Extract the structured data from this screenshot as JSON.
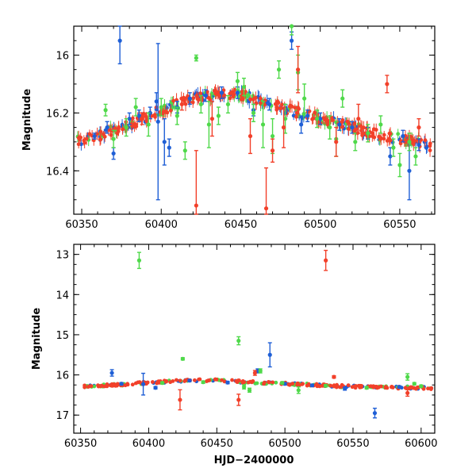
{
  "colors": {
    "blue": "#1f5fd6",
    "green": "#4fd94a",
    "red": "#f2402a"
  },
  "chart_data": [
    {
      "type": "scatter",
      "panel": "top",
      "title": "",
      "xlabel": "",
      "ylabel": "Magnitude",
      "xlim": [
        60345,
        60572
      ],
      "ylim": [
        16.55,
        15.9
      ],
      "y_inverted": true,
      "grid": false,
      "xticks": [
        60350,
        60400,
        60450,
        60500,
        60550
      ],
      "yticks": [
        16.0,
        16.2,
        16.4
      ],
      "ytick_labels": [
        "16",
        "16.2",
        "16.4"
      ],
      "trend": {
        "x": [
          60345,
          60360,
          60380,
          60400,
          60420,
          60440,
          60460,
          60480,
          60500,
          60520,
          60540,
          60560,
          60572
        ],
        "y": [
          16.3,
          16.28,
          16.24,
          16.19,
          16.15,
          16.13,
          16.15,
          16.19,
          16.22,
          16.25,
          16.28,
          16.3,
          16.32
        ]
      },
      "series": [
        {
          "color": "blue",
          "points": [
            {
              "x": 60358,
              "y": 16.28,
              "e": 0.01
            },
            {
              "x": 60366,
              "y": 16.25,
              "e": 0.02
            },
            {
              "x": 60370,
              "y": 16.34,
              "e": 0.02
            },
            {
              "x": 60374,
              "y": 15.95,
              "e": 0.08
            },
            {
              "x": 60380,
              "y": 16.22,
              "e": 0.02
            },
            {
              "x": 60386,
              "y": 16.21,
              "e": 0.02
            },
            {
              "x": 60393,
              "y": 16.2,
              "e": 0.02
            },
            {
              "x": 60397,
              "y": 16.16,
              "e": 0.03
            },
            {
              "x": 60398,
              "y": 16.23,
              "e": 0.27
            },
            {
              "x": 60402,
              "y": 16.3,
              "e": 0.08
            },
            {
              "x": 60405,
              "y": 16.32,
              "e": 0.03
            },
            {
              "x": 60410,
              "y": 16.18,
              "e": 0.02
            },
            {
              "x": 60418,
              "y": 16.15,
              "e": 0.02
            },
            {
              "x": 60428,
              "y": 16.14,
              "e": 0.02
            },
            {
              "x": 60438,
              "y": 16.13,
              "e": 0.02
            },
            {
              "x": 60448,
              "y": 16.13,
              "e": 0.02
            },
            {
              "x": 60458,
              "y": 16.19,
              "e": 0.02
            },
            {
              "x": 60468,
              "y": 16.17,
              "e": 0.02
            },
            {
              "x": 60478,
              "y": 16.2,
              "e": 0.02
            },
            {
              "x": 60482,
              "y": 15.95,
              "e": 0.03
            },
            {
              "x": 60488,
              "y": 16.24,
              "e": 0.03
            },
            {
              "x": 60492,
              "y": 16.21,
              "e": 0.02
            },
            {
              "x": 60500,
              "y": 16.22,
              "e": 0.02
            },
            {
              "x": 60512,
              "y": 16.24,
              "e": 0.02
            },
            {
              "x": 60520,
              "y": 16.25,
              "e": 0.02
            },
            {
              "x": 60530,
              "y": 16.27,
              "e": 0.02
            },
            {
              "x": 60544,
              "y": 16.35,
              "e": 0.03
            },
            {
              "x": 60552,
              "y": 16.28,
              "e": 0.02
            },
            {
              "x": 60556,
              "y": 16.4,
              "e": 0.1
            },
            {
              "x": 60562,
              "y": 16.31,
              "e": 0.02
            }
          ]
        },
        {
          "color": "green",
          "points": [
            {
              "x": 60365,
              "y": 16.19,
              "e": 0.02
            },
            {
              "x": 60370,
              "y": 16.29,
              "e": 0.03
            },
            {
              "x": 60378,
              "y": 16.25,
              "e": 0.03
            },
            {
              "x": 60384,
              "y": 16.18,
              "e": 0.03
            },
            {
              "x": 60392,
              "y": 16.24,
              "e": 0.04
            },
            {
              "x": 60400,
              "y": 16.18,
              "e": 0.03
            },
            {
              "x": 60410,
              "y": 16.21,
              "e": 0.03
            },
            {
              "x": 60415,
              "y": 16.33,
              "e": 0.03
            },
            {
              "x": 60422,
              "y": 16.01,
              "e": 0.01
            },
            {
              "x": 60425,
              "y": 16.17,
              "e": 0.03
            },
            {
              "x": 60430,
              "y": 16.24,
              "e": 0.08
            },
            {
              "x": 60436,
              "y": 16.21,
              "e": 0.03
            },
            {
              "x": 60442,
              "y": 16.17,
              "e": 0.03
            },
            {
              "x": 60448,
              "y": 16.09,
              "e": 0.03
            },
            {
              "x": 60452,
              "y": 16.11,
              "e": 0.03
            },
            {
              "x": 60458,
              "y": 16.2,
              "e": 0.03
            },
            {
              "x": 60464,
              "y": 16.24,
              "e": 0.08
            },
            {
              "x": 60470,
              "y": 16.28,
              "e": 0.06
            },
            {
              "x": 60474,
              "y": 16.05,
              "e": 0.03
            },
            {
              "x": 60478,
              "y": 16.22,
              "e": 0.05
            },
            {
              "x": 60482,
              "y": 15.9,
              "e": 0.03
            },
            {
              "x": 60486,
              "y": 16.06,
              "e": 0.06
            },
            {
              "x": 60490,
              "y": 16.15,
              "e": 0.05
            },
            {
              "x": 60498,
              "y": 16.22,
              "e": 0.03
            },
            {
              "x": 60506,
              "y": 16.25,
              "e": 0.04
            },
            {
              "x": 60510,
              "y": 16.29,
              "e": 0.06
            },
            {
              "x": 60514,
              "y": 16.15,
              "e": 0.03
            },
            {
              "x": 60522,
              "y": 16.3,
              "e": 0.03
            },
            {
              "x": 60530,
              "y": 16.27,
              "e": 0.03
            },
            {
              "x": 60538,
              "y": 16.24,
              "e": 0.03
            },
            {
              "x": 60546,
              "y": 16.32,
              "e": 0.03
            },
            {
              "x": 60550,
              "y": 16.38,
              "e": 0.04
            },
            {
              "x": 60556,
              "y": 16.3,
              "e": 0.03
            },
            {
              "x": 60560,
              "y": 16.35,
              "e": 0.03
            }
          ]
        },
        {
          "color": "red",
          "points": [
            {
              "x": 60388,
              "y": 16.22,
              "e": 0.02
            },
            {
              "x": 60413,
              "y": 16.17,
              "e": 0.02
            },
            {
              "x": 60422,
              "y": 16.52,
              "e": 0.19
            },
            {
              "x": 60432,
              "y": 16.22,
              "e": 0.06
            },
            {
              "x": 60456,
              "y": 16.28,
              "e": 0.06
            },
            {
              "x": 60466,
              "y": 16.53,
              "e": 0.14
            },
            {
              "x": 60470,
              "y": 16.33,
              "e": 0.04
            },
            {
              "x": 60477,
              "y": 16.25,
              "e": 0.07
            },
            {
              "x": 60486,
              "y": 16.05,
              "e": 0.08
            },
            {
              "x": 60510,
              "y": 16.3,
              "e": 0.05
            },
            {
              "x": 60524,
              "y": 16.22,
              "e": 0.05
            },
            {
              "x": 60542,
              "y": 16.1,
              "e": 0.03
            },
            {
              "x": 60562,
              "y": 16.25,
              "e": 0.03
            }
          ]
        }
      ]
    },
    {
      "type": "scatter",
      "panel": "bottom",
      "title": "",
      "xlabel": "HJD−2400000",
      "ylabel": "Magnitude",
      "xlim": [
        60345,
        60610
      ],
      "ylim": [
        17.45,
        12.75
      ],
      "y_inverted": true,
      "grid": false,
      "xticks": [
        60350,
        60400,
        60450,
        60500,
        60550,
        60600
      ],
      "yticks": [
        13,
        14,
        15,
        16,
        17
      ],
      "ytick_labels": [
        "13",
        "14",
        "15",
        "16",
        "17"
      ],
      "trend": {
        "x": [
          60345,
          60360,
          60380,
          60400,
          60420,
          60440,
          60460,
          60480,
          60500,
          60520,
          60540,
          60560,
          60580,
          60600,
          60610
        ],
        "y": [
          16.3,
          16.28,
          16.24,
          16.19,
          16.15,
          16.13,
          16.15,
          16.19,
          16.22,
          16.25,
          16.28,
          16.3,
          16.31,
          16.32,
          16.33
        ]
      },
      "series": [
        {
          "color": "blue",
          "points": [
            {
              "x": 60373,
              "y": 15.95,
              "e": 0.08
            },
            {
              "x": 60380,
              "y": 16.22,
              "e": 0.03
            },
            {
              "x": 60396,
              "y": 16.23,
              "e": 0.27
            },
            {
              "x": 60405,
              "y": 16.32,
              "e": 0.03
            },
            {
              "x": 60430,
              "y": 16.14,
              "e": 0.03
            },
            {
              "x": 60458,
              "y": 16.19,
              "e": 0.03
            },
            {
              "x": 60480,
              "y": 15.9,
              "e": 0.05
            },
            {
              "x": 60489,
              "y": 15.5,
              "e": 0.3
            },
            {
              "x": 60500,
              "y": 16.22,
              "e": 0.03
            },
            {
              "x": 60520,
              "y": 16.26,
              "e": 0.03
            },
            {
              "x": 60544,
              "y": 16.34,
              "e": 0.04
            },
            {
              "x": 60566,
              "y": 16.95,
              "e": 0.12
            },
            {
              "x": 60584,
              "y": 16.3,
              "e": 0.03
            }
          ]
        },
        {
          "color": "green",
          "points": [
            {
              "x": 60393,
              "y": 13.15,
              "e": 0.2
            },
            {
              "x": 60410,
              "y": 16.2,
              "e": 0.03
            },
            {
              "x": 60425,
              "y": 15.6,
              "e": 0.03
            },
            {
              "x": 60440,
              "y": 16.18,
              "e": 0.03
            },
            {
              "x": 60466,
              "y": 15.15,
              "e": 0.1
            },
            {
              "x": 60470,
              "y": 16.3,
              "e": 0.05
            },
            {
              "x": 60474,
              "y": 16.38,
              "e": 0.05
            },
            {
              "x": 60482,
              "y": 15.9,
              "e": 0.05
            },
            {
              "x": 60498,
              "y": 16.2,
              "e": 0.03
            },
            {
              "x": 60510,
              "y": 16.38,
              "e": 0.08
            },
            {
              "x": 60530,
              "y": 16.27,
              "e": 0.03
            },
            {
              "x": 60560,
              "y": 16.32,
              "e": 0.03
            },
            {
              "x": 60590,
              "y": 16.05,
              "e": 0.08
            },
            {
              "x": 60595,
              "y": 16.22,
              "e": 0.03
            },
            {
              "x": 60600,
              "y": 16.28,
              "e": 0.03
            }
          ]
        },
        {
          "color": "red",
          "points": [
            {
              "x": 60423,
              "y": 16.62,
              "e": 0.25
            },
            {
              "x": 60466,
              "y": 16.62,
              "e": 0.14
            },
            {
              "x": 60478,
              "y": 15.95,
              "e": 0.06
            },
            {
              "x": 60530,
              "y": 13.15,
              "e": 0.25
            },
            {
              "x": 60536,
              "y": 16.05,
              "e": 0.03
            },
            {
              "x": 60590,
              "y": 16.45,
              "e": 0.08
            }
          ]
        }
      ]
    }
  ]
}
